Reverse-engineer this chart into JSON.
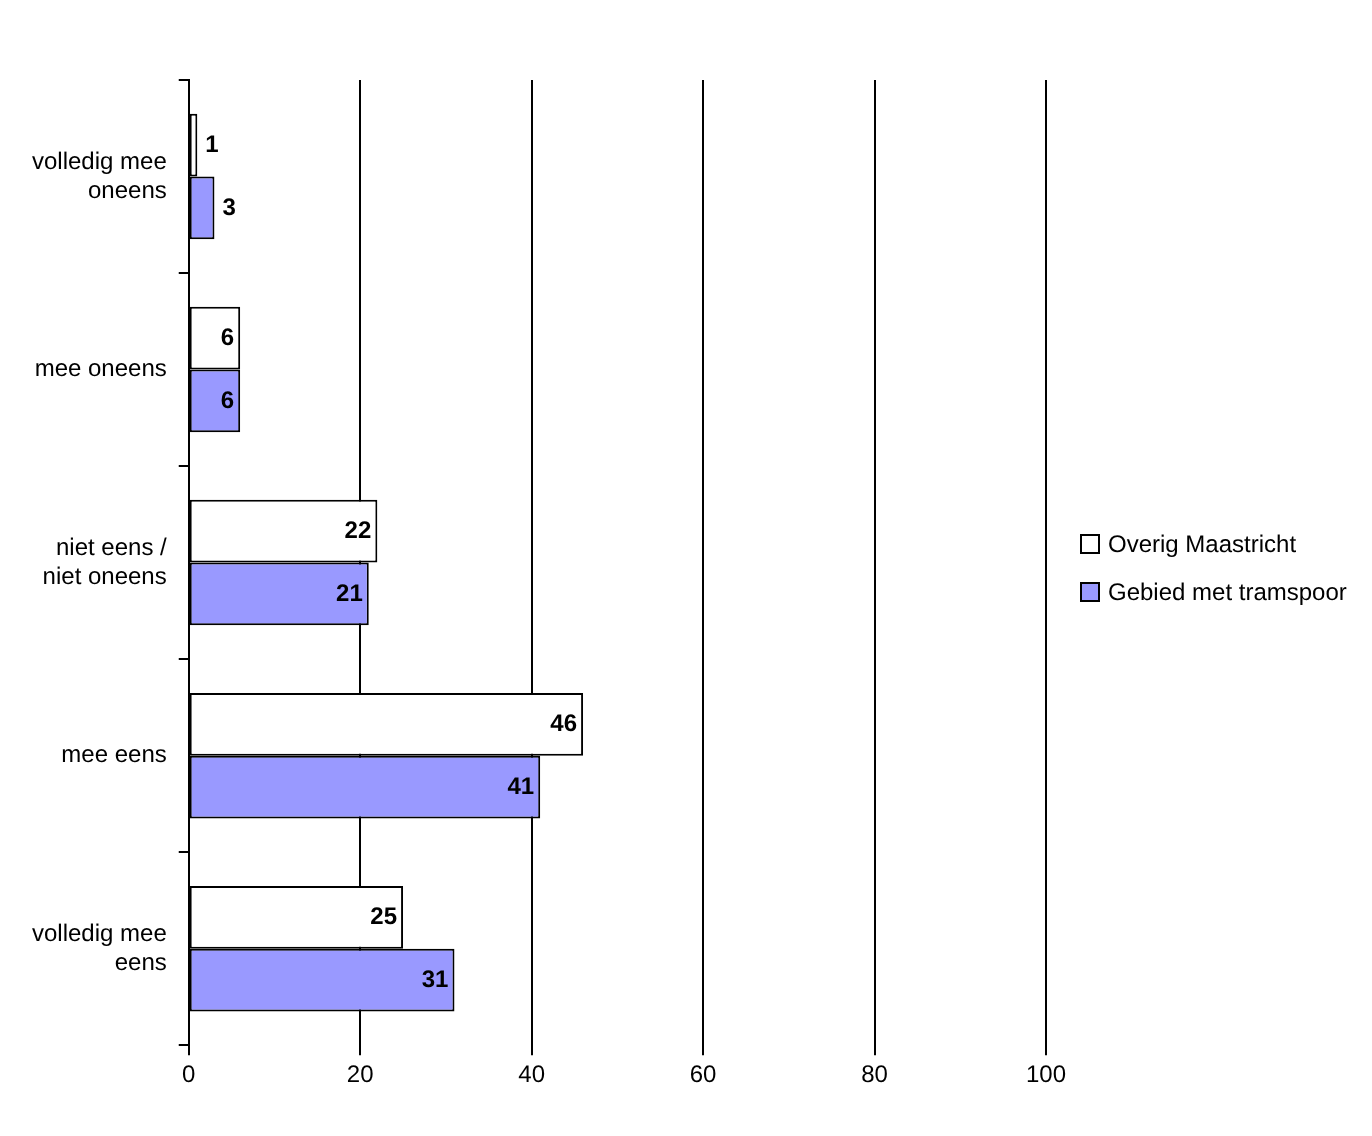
{
  "chart_data": {
    "type": "bar",
    "orientation": "horizontal",
    "categories": [
      "volledig mee oneens",
      "mee oneens",
      "niet eens / niet oneens",
      "mee eens",
      "volledig mee eens"
    ],
    "series": [
      {
        "name": "Overig Maastricht",
        "color": "#ffffff",
        "values": [
          1,
          6,
          22,
          46,
          25
        ]
      },
      {
        "name": "Gebied met tramspoor",
        "color": "#9999ff",
        "values": [
          3,
          6,
          21,
          41,
          31
        ]
      }
    ],
    "xlim": [
      0,
      100
    ],
    "xticks": [
      0,
      20,
      40,
      60,
      80,
      100
    ],
    "grid": "x",
    "legend": "right",
    "data_labels": true
  }
}
